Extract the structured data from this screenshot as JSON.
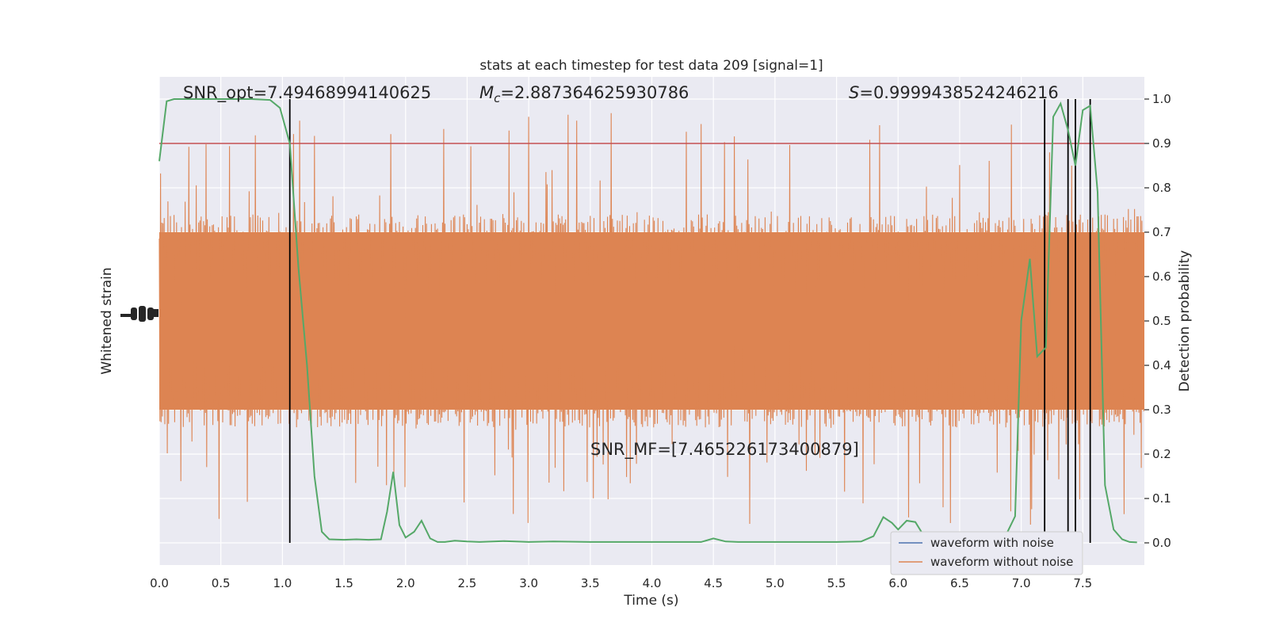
{
  "chart_data": {
    "type": "line",
    "title": "stats at each timestep for test data 209 [signal=1]",
    "xlabel": "Time (s)",
    "ylabel_left": "Whitened strain",
    "ylabel_right": "Detection probability",
    "xlim": [
      0.0,
      8.0
    ],
    "ylim_right": [
      -0.05,
      1.05
    ],
    "x_ticks": [
      "0.0",
      "0.5",
      "1.0",
      "1.5",
      "2.0",
      "2.5",
      "3.0",
      "3.5",
      "4.0",
      "4.5",
      "5.0",
      "5.5",
      "6.0",
      "6.5",
      "7.0",
      "7.5"
    ],
    "x_tick_values": [
      0.0,
      0.5,
      1.0,
      1.5,
      2.0,
      2.5,
      3.0,
      3.5,
      4.0,
      4.5,
      5.0,
      5.5,
      6.0,
      6.5,
      7.0,
      7.5
    ],
    "y_ticks_right": [
      "0.0",
      "0.1",
      "0.2",
      "0.3",
      "0.4",
      "0.5",
      "0.6",
      "0.7",
      "0.8",
      "0.9",
      "1.0"
    ],
    "y_tick_values_right": [
      0.0,
      0.1,
      0.2,
      0.3,
      0.4,
      0.5,
      0.6,
      0.7,
      0.8,
      0.9,
      1.0
    ],
    "grid": true,
    "legend_position": "bottom-right",
    "threshold": 0.9,
    "threshold_color": "#c44e52",
    "detection_times": [
      1.06,
      7.19,
      7.38,
      7.44,
      7.56
    ],
    "strain_noise_band": {
      "center": 0.5,
      "halfwidth": 0.2,
      "max_spike": 0.47
    },
    "annotations": {
      "snr_opt": "SNR_opt=7.49468994140625",
      "mc_symbol": "M",
      "mc_sub": "c",
      "mc_value": "=2.887364625930786",
      "s_symbol": "S",
      "s_value": "=0.9999438524246216",
      "snr_mf": "SNR_MF=[7.465226173400879]"
    },
    "series": [
      {
        "name": "waveform with noise",
        "color": "#4c72b0"
      },
      {
        "name": "waveform without noise",
        "color": "#dd8452"
      }
    ],
    "probability_series": {
      "color": "#55a868",
      "x": [
        0.0,
        0.06,
        0.12,
        0.25,
        0.5,
        0.75,
        0.9,
        0.98,
        1.06,
        1.13,
        1.2,
        1.26,
        1.32,
        1.38,
        1.5,
        1.6,
        1.7,
        1.8,
        1.85,
        1.9,
        1.95,
        2.0,
        2.07,
        2.13,
        2.2,
        2.26,
        2.32,
        2.4,
        2.5,
        2.6,
        2.8,
        3.0,
        3.2,
        3.5,
        4.0,
        4.4,
        4.5,
        4.6,
        4.7,
        5.0,
        5.5,
        5.7,
        5.8,
        5.88,
        5.95,
        6.0,
        6.07,
        6.14,
        6.2,
        6.3,
        6.4,
        6.5,
        6.6,
        6.8,
        6.88,
        6.95,
        7.0,
        7.07,
        7.13,
        7.2,
        7.26,
        7.32,
        7.38,
        7.44,
        7.5,
        7.56,
        7.62,
        7.68,
        7.75,
        7.82,
        7.88,
        7.94
      ],
      "y": [
        0.86,
        0.995,
        1.0,
        1.0,
        1.0,
        1.0,
        0.998,
        0.98,
        0.9,
        0.62,
        0.4,
        0.15,
        0.025,
        0.008,
        0.007,
        0.008,
        0.007,
        0.008,
        0.07,
        0.16,
        0.04,
        0.012,
        0.025,
        0.05,
        0.01,
        0.002,
        0.002,
        0.005,
        0.003,
        0.002,
        0.004,
        0.002,
        0.003,
        0.002,
        0.002,
        0.002,
        0.01,
        0.003,
        0.002,
        0.002,
        0.002,
        0.003,
        0.015,
        0.058,
        0.045,
        0.03,
        0.05,
        0.047,
        0.02,
        0.01,
        0.003,
        0.002,
        0.002,
        0.002,
        0.02,
        0.06,
        0.5,
        0.64,
        0.42,
        0.44,
        0.96,
        0.99,
        0.93,
        0.85,
        0.975,
        0.985,
        0.79,
        0.13,
        0.03,
        0.008,
        0.002,
        0.001
      ]
    }
  }
}
